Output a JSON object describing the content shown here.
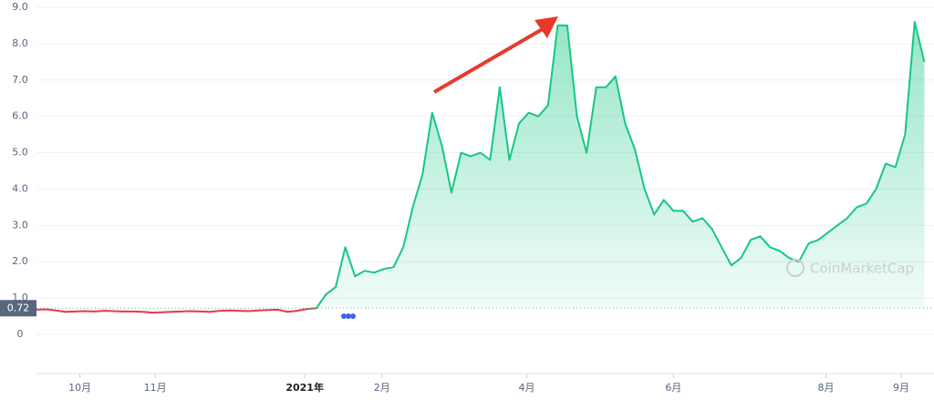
{
  "chart_data": {
    "type": "line",
    "values": [
      0.68,
      0.69,
      0.66,
      0.62,
      0.63,
      0.64,
      0.63,
      0.65,
      0.64,
      0.63,
      0.63,
      0.62,
      0.6,
      0.61,
      0.62,
      0.63,
      0.64,
      0.63,
      0.62,
      0.65,
      0.66,
      0.65,
      0.64,
      0.66,
      0.67,
      0.68,
      0.62,
      0.65,
      0.7,
      0.72,
      1.1,
      1.3,
      2.4,
      1.6,
      1.75,
      1.7,
      1.8,
      1.85,
      2.4,
      3.5,
      4.4,
      6.1,
      5.2,
      3.9,
      5.0,
      4.9,
      5.0,
      4.8,
      6.8,
      4.8,
      5.8,
      6.1,
      6.0,
      6.3,
      8.5,
      8.5,
      6.0,
      5.0,
      6.8,
      6.8,
      7.1,
      5.8,
      5.1,
      4.0,
      3.3,
      3.7,
      3.4,
      3.4,
      3.1,
      3.2,
      2.9,
      2.4,
      1.9,
      2.1,
      2.6,
      2.7,
      2.4,
      2.3,
      2.1,
      2.0,
      2.5,
      2.6,
      2.8,
      3.0,
      3.2,
      3.5,
      3.6,
      4.0,
      4.7,
      4.6,
      5.5,
      8.6,
      7.5
    ],
    "xlim": [
      0,
      93
    ],
    "xticks": [
      {
        "value": 4.5,
        "label": "10月"
      },
      {
        "value": 12.3,
        "label": "11月"
      },
      {
        "value": 27.8,
        "label": "2021年"
      },
      {
        "value": 35.8,
        "label": "2月"
      },
      {
        "value": 50.8,
        "label": "4月"
      },
      {
        "value": 66,
        "label": "6月"
      },
      {
        "value": 81.8,
        "label": "8月"
      },
      {
        "value": 89.6,
        "label": "9月"
      }
    ],
    "ylim": [
      0,
      9
    ],
    "yticks": [
      0,
      {
        "value": 1,
        "label": "1.0"
      },
      {
        "value": 2,
        "label": "2.0"
      },
      {
        "value": 3,
        "label": "3.0"
      },
      {
        "value": 4,
        "label": "4.0"
      },
      {
        "value": 5,
        "label": "5.0"
      },
      {
        "value": 6,
        "label": "6.0"
      },
      {
        "value": 7,
        "label": "7.0"
      },
      {
        "value": 8,
        "label": "8.0"
      },
      {
        "value": 9,
        "label": "9.0"
      }
    ],
    "baseline": {
      "value": 0.72,
      "label": "0.72"
    },
    "color": "#16c784",
    "below_color": "#ea3943",
    "grid": true,
    "watermark": "CoinMarketCap"
  }
}
